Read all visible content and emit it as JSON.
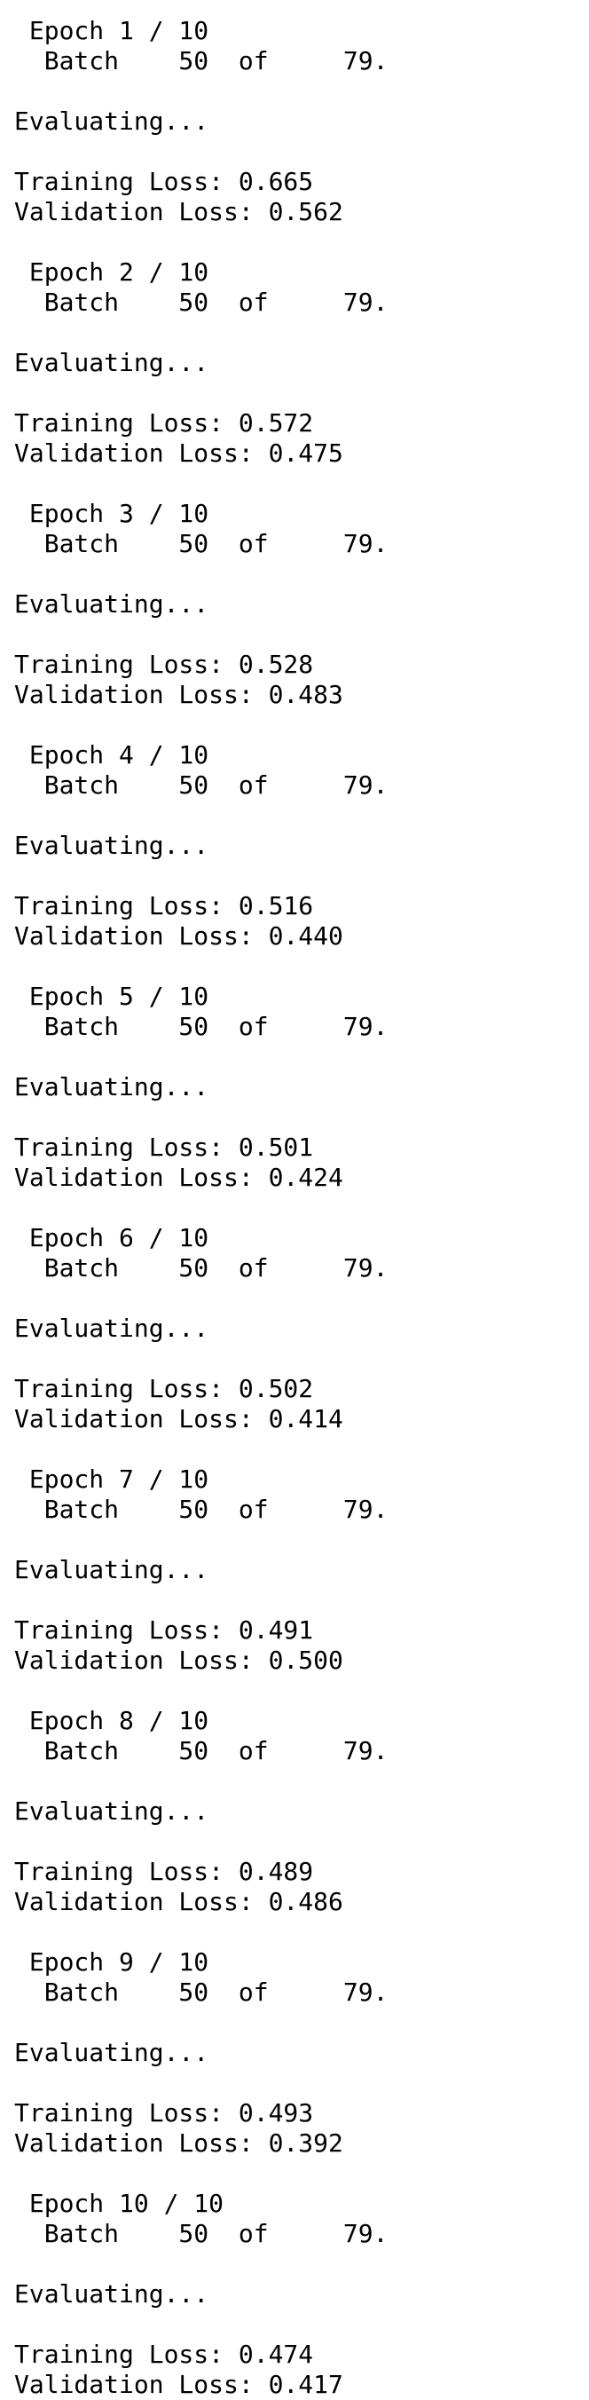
{
  "log": {
    "lines": [
      " Epoch 1 / 10",
      "  Batch    50  of     79.",
      "",
      "Evaluating...",
      "",
      "Training Loss: 0.665",
      "Validation Loss: 0.562",
      "",
      " Epoch 2 / 10",
      "  Batch    50  of     79.",
      "",
      "Evaluating...",
      "",
      "Training Loss: 0.572",
      "Validation Loss: 0.475",
      "",
      " Epoch 3 / 10",
      "  Batch    50  of     79.",
      "",
      "Evaluating...",
      "",
      "Training Loss: 0.528",
      "Validation Loss: 0.483",
      "",
      " Epoch 4 / 10",
      "  Batch    50  of     79.",
      "",
      "Evaluating...",
      "",
      "Training Loss: 0.516",
      "Validation Loss: 0.440",
      "",
      " Epoch 5 / 10",
      "  Batch    50  of     79.",
      "",
      "Evaluating...",
      "",
      "Training Loss: 0.501",
      "Validation Loss: 0.424",
      "",
      " Epoch 6 / 10",
      "  Batch    50  of     79.",
      "",
      "Evaluating...",
      "",
      "Training Loss: 0.502",
      "Validation Loss: 0.414",
      "",
      " Epoch 7 / 10",
      "  Batch    50  of     79.",
      "",
      "Evaluating...",
      "",
      "Training Loss: 0.491",
      "Validation Loss: 0.500",
      "",
      " Epoch 8 / 10",
      "  Batch    50  of     79.",
      "",
      "Evaluating...",
      "",
      "Training Loss: 0.489",
      "Validation Loss: 0.486",
      "",
      " Epoch 9 / 10",
      "  Batch    50  of     79.",
      "",
      "Evaluating...",
      "",
      "Training Loss: 0.493",
      "Validation Loss: 0.392",
      "",
      " Epoch 10 / 10",
      "  Batch    50  of     79.",
      "",
      "Evaluating...",
      "",
      "Training Loss: 0.474",
      "Validation Loss: 0.417"
    ]
  }
}
